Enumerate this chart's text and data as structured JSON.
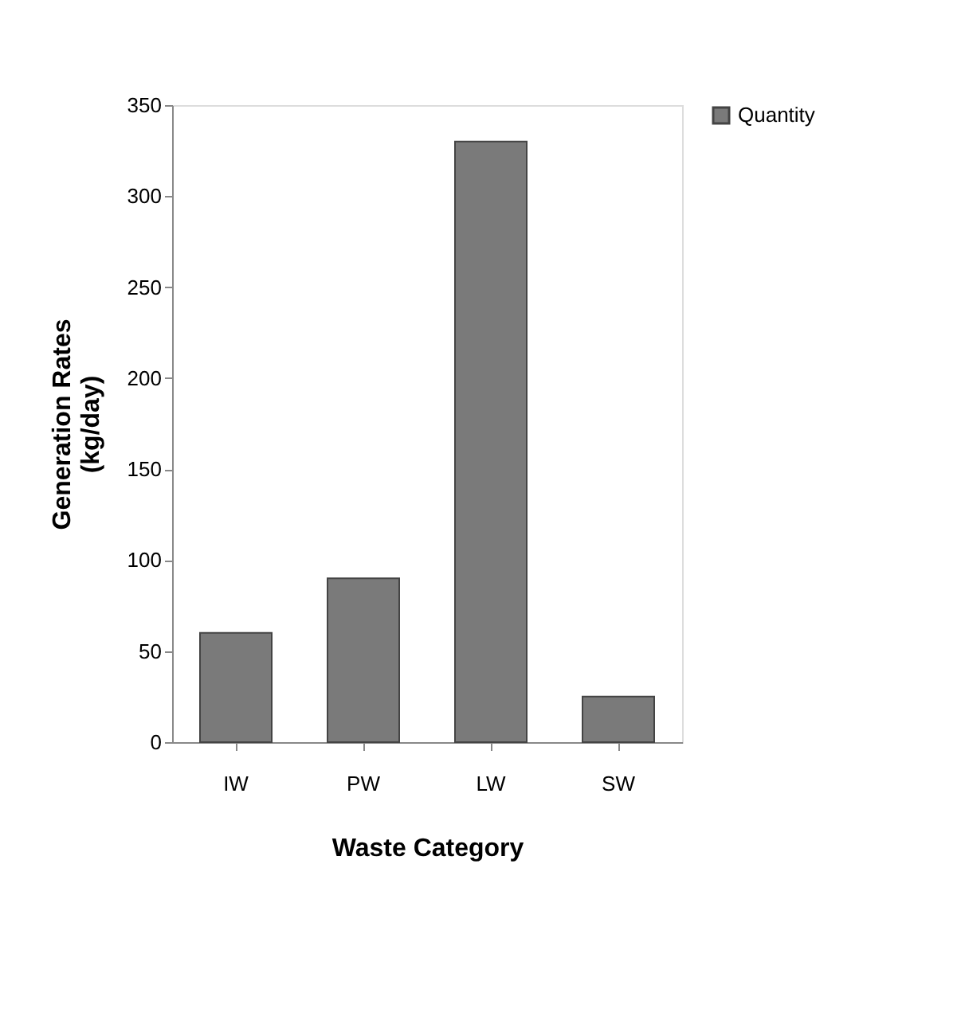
{
  "chart_data": {
    "type": "bar",
    "xlabel": "Waste Category",
    "ylabel": "Generation Rates\n(kg/day)",
    "categories": [
      "IW",
      "PW",
      "LW",
      "SW"
    ],
    "series": [
      {
        "name": "Quantity",
        "color": "#7a7a7a",
        "values": [
          60,
          90,
          330,
          25
        ]
      }
    ],
    "ylim": [
      0,
      350
    ],
    "yticks": [
      0,
      50,
      100,
      150,
      200,
      250,
      300,
      350
    ],
    "grid": false,
    "legend": "right"
  }
}
